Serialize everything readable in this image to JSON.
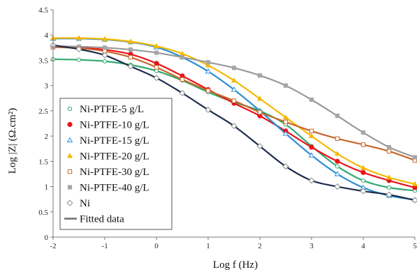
{
  "chart_data": {
    "type": "scatter",
    "xlabel": "Log f (Hz)",
    "ylabel": "Log |Z| (Ω.cm²)",
    "xlim": [
      -2,
      5
    ],
    "ylim": [
      0,
      4.5
    ],
    "x_ticks": [
      "-2",
      "-1",
      "0",
      "1",
      "2",
      "3",
      "4",
      "5"
    ],
    "y_ticks": [
      "0",
      "0.5",
      "1",
      "1.5",
      "2",
      "2.5",
      "3",
      "3.5",
      "4",
      "4.5"
    ],
    "grid": false,
    "legend_position": "bottom-left",
    "series": [
      {
        "name": "Ni-PTFE-5 g/L",
        "marker": "circle-open",
        "color": "#2eaa6e",
        "points": [
          [
            -2.0,
            3.52
          ],
          [
            -1.5,
            3.51
          ],
          [
            -1.0,
            3.48
          ],
          [
            -0.5,
            3.41
          ],
          [
            0.0,
            3.29
          ],
          [
            0.5,
            3.1
          ],
          [
            1.0,
            2.87
          ],
          [
            1.5,
            2.67
          ],
          [
            2.0,
            2.5
          ],
          [
            2.5,
            2.23
          ],
          [
            3.0,
            1.8
          ],
          [
            3.5,
            1.4
          ],
          [
            4.0,
            1.12
          ],
          [
            4.5,
            0.98
          ],
          [
            5.0,
            0.92
          ]
        ]
      },
      {
        "name": "Ni-PTFE-10 g/L",
        "marker": "circle-filled",
        "color": "#e8141a",
        "points": [
          [
            -2.0,
            3.77
          ],
          [
            -1.5,
            3.75
          ],
          [
            -1.0,
            3.71
          ],
          [
            -0.5,
            3.62
          ],
          [
            0.0,
            3.44
          ],
          [
            0.5,
            3.19
          ],
          [
            1.0,
            2.92
          ],
          [
            1.5,
            2.65
          ],
          [
            2.0,
            2.4
          ],
          [
            2.5,
            2.1
          ],
          [
            3.0,
            1.78
          ],
          [
            3.5,
            1.5
          ],
          [
            4.0,
            1.28
          ],
          [
            4.5,
            1.12
          ],
          [
            5.0,
            0.98
          ]
        ]
      },
      {
        "name": "Ni-PTFE-15 g/L",
        "marker": "triangle-open",
        "color": "#2a8ed6",
        "points": [
          [
            -2.0,
            3.93
          ],
          [
            -1.5,
            3.93
          ],
          [
            -1.0,
            3.91
          ],
          [
            -0.5,
            3.86
          ],
          [
            0.0,
            3.76
          ],
          [
            0.5,
            3.56
          ],
          [
            1.0,
            3.28
          ],
          [
            1.5,
            2.92
          ],
          [
            2.0,
            2.5
          ],
          [
            2.5,
            2.05
          ],
          [
            3.0,
            1.62
          ],
          [
            3.5,
            1.25
          ],
          [
            4.0,
            0.98
          ],
          [
            4.5,
            0.82
          ],
          [
            5.0,
            0.74
          ]
        ]
      },
      {
        "name": "Ni-PTFE-20 g/L",
        "marker": "triangle-filled",
        "color": "#f5b800",
        "points": [
          [
            -2.0,
            3.94
          ],
          [
            -1.5,
            3.94
          ],
          [
            -1.0,
            3.92
          ],
          [
            -0.5,
            3.87
          ],
          [
            0.0,
            3.78
          ],
          [
            0.5,
            3.63
          ],
          [
            1.0,
            3.4
          ],
          [
            1.5,
            3.1
          ],
          [
            2.0,
            2.74
          ],
          [
            2.5,
            2.37
          ],
          [
            3.0,
            2.0
          ],
          [
            3.5,
            1.65
          ],
          [
            4.0,
            1.37
          ],
          [
            4.5,
            1.18
          ],
          [
            5.0,
            1.05
          ]
        ]
      },
      {
        "name": "Ni-PTFE-30 g/L",
        "marker": "square-open",
        "color": "#c8662a",
        "points": [
          [
            -2.0,
            3.76
          ],
          [
            -1.5,
            3.74
          ],
          [
            -1.0,
            3.68
          ],
          [
            -0.5,
            3.56
          ],
          [
            0.0,
            3.36
          ],
          [
            0.5,
            3.12
          ],
          [
            1.0,
            2.9
          ],
          [
            1.5,
            2.7
          ],
          [
            2.0,
            2.47
          ],
          [
            2.5,
            2.28
          ],
          [
            3.0,
            2.1
          ],
          [
            3.5,
            1.95
          ],
          [
            4.0,
            1.83
          ],
          [
            4.5,
            1.7
          ],
          [
            5.0,
            1.52
          ]
        ]
      },
      {
        "name": "Ni-PTFE-40 g/L",
        "marker": "square-filled",
        "color": "#a6a6a6",
        "points": [
          [
            -2.0,
            3.78
          ],
          [
            -1.5,
            3.77
          ],
          [
            -1.0,
            3.75
          ],
          [
            -0.5,
            3.71
          ],
          [
            0.0,
            3.65
          ],
          [
            0.5,
            3.56
          ],
          [
            1.0,
            3.46
          ],
          [
            1.5,
            3.35
          ],
          [
            2.0,
            3.2
          ],
          [
            2.5,
            3.0
          ],
          [
            3.0,
            2.72
          ],
          [
            3.5,
            2.4
          ],
          [
            4.0,
            2.07
          ],
          [
            4.5,
            1.78
          ],
          [
            5.0,
            1.58
          ]
        ]
      },
      {
        "name": "Ni",
        "marker": "diamond-open",
        "color": "#8c8c8c",
        "points": [
          [
            -2.0,
            3.8
          ],
          [
            -1.5,
            3.72
          ],
          [
            -1.0,
            3.6
          ],
          [
            -0.5,
            3.38
          ],
          [
            0.0,
            3.15
          ],
          [
            0.5,
            2.85
          ],
          [
            1.0,
            2.52
          ],
          [
            1.5,
            2.2
          ],
          [
            2.0,
            1.8
          ],
          [
            2.5,
            1.4
          ],
          [
            3.0,
            1.12
          ],
          [
            3.5,
            1.0
          ],
          [
            4.0,
            0.91
          ],
          [
            4.5,
            0.84
          ],
          [
            5.0,
            0.73
          ]
        ]
      }
    ],
    "fitted_data": {
      "name": "Fitted data",
      "legend_color": "#6e6e6e",
      "fit_colors": [
        "#2eaa6e",
        "#e8141a",
        "#2a8ed6",
        "#f5b800",
        "#c8662a",
        "#9a9a9a",
        "#1c2b4d"
      ]
    }
  }
}
